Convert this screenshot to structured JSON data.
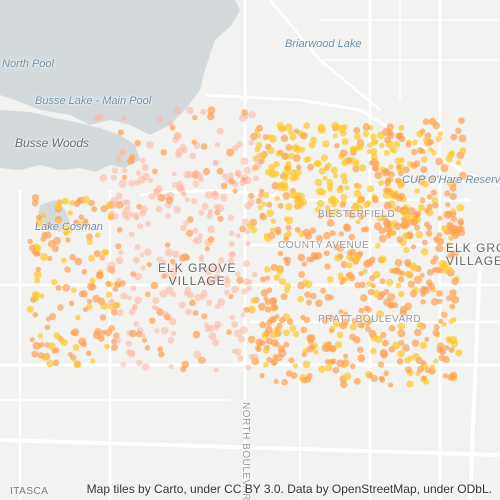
{
  "map": {
    "labels": {
      "north_pool": "North Pool",
      "briarwood_lake": "Briarwood Lake",
      "busse_lake": "Busse Lake - Main Pool",
      "busse_woods": "Busse Woods",
      "cup": "CUP O'Hare Reservo",
      "lake_cosman": "Lake Cosman",
      "elk_grove_village_1": "ELK GROVE",
      "elk_grove_village_2": "VILLAGE",
      "elk_grove_village_east_1": "ELK GROVE",
      "elk_grove_village_east_2": "VILLAGE",
      "biesterfield": "BIESTERFIELD",
      "county_avenue": "COUNTY AVENUE",
      "pratt_boulevard": "PRATT BOULEVARD",
      "north_boulevard": "NORTH BOULEVARD",
      "itasca": "ITASCA"
    },
    "attribution": "Map tiles by Carto, under CC BY 3.0. Data by OpenStreetMap, under ODbL.",
    "colors": {
      "background": "#f2f2f0",
      "water": "#d4dadc",
      "roads": "#ffffff",
      "dot_light": "#ffb5a0",
      "dot_orange": "#ff9f50",
      "dot_yellow": "#ffc928"
    }
  }
}
